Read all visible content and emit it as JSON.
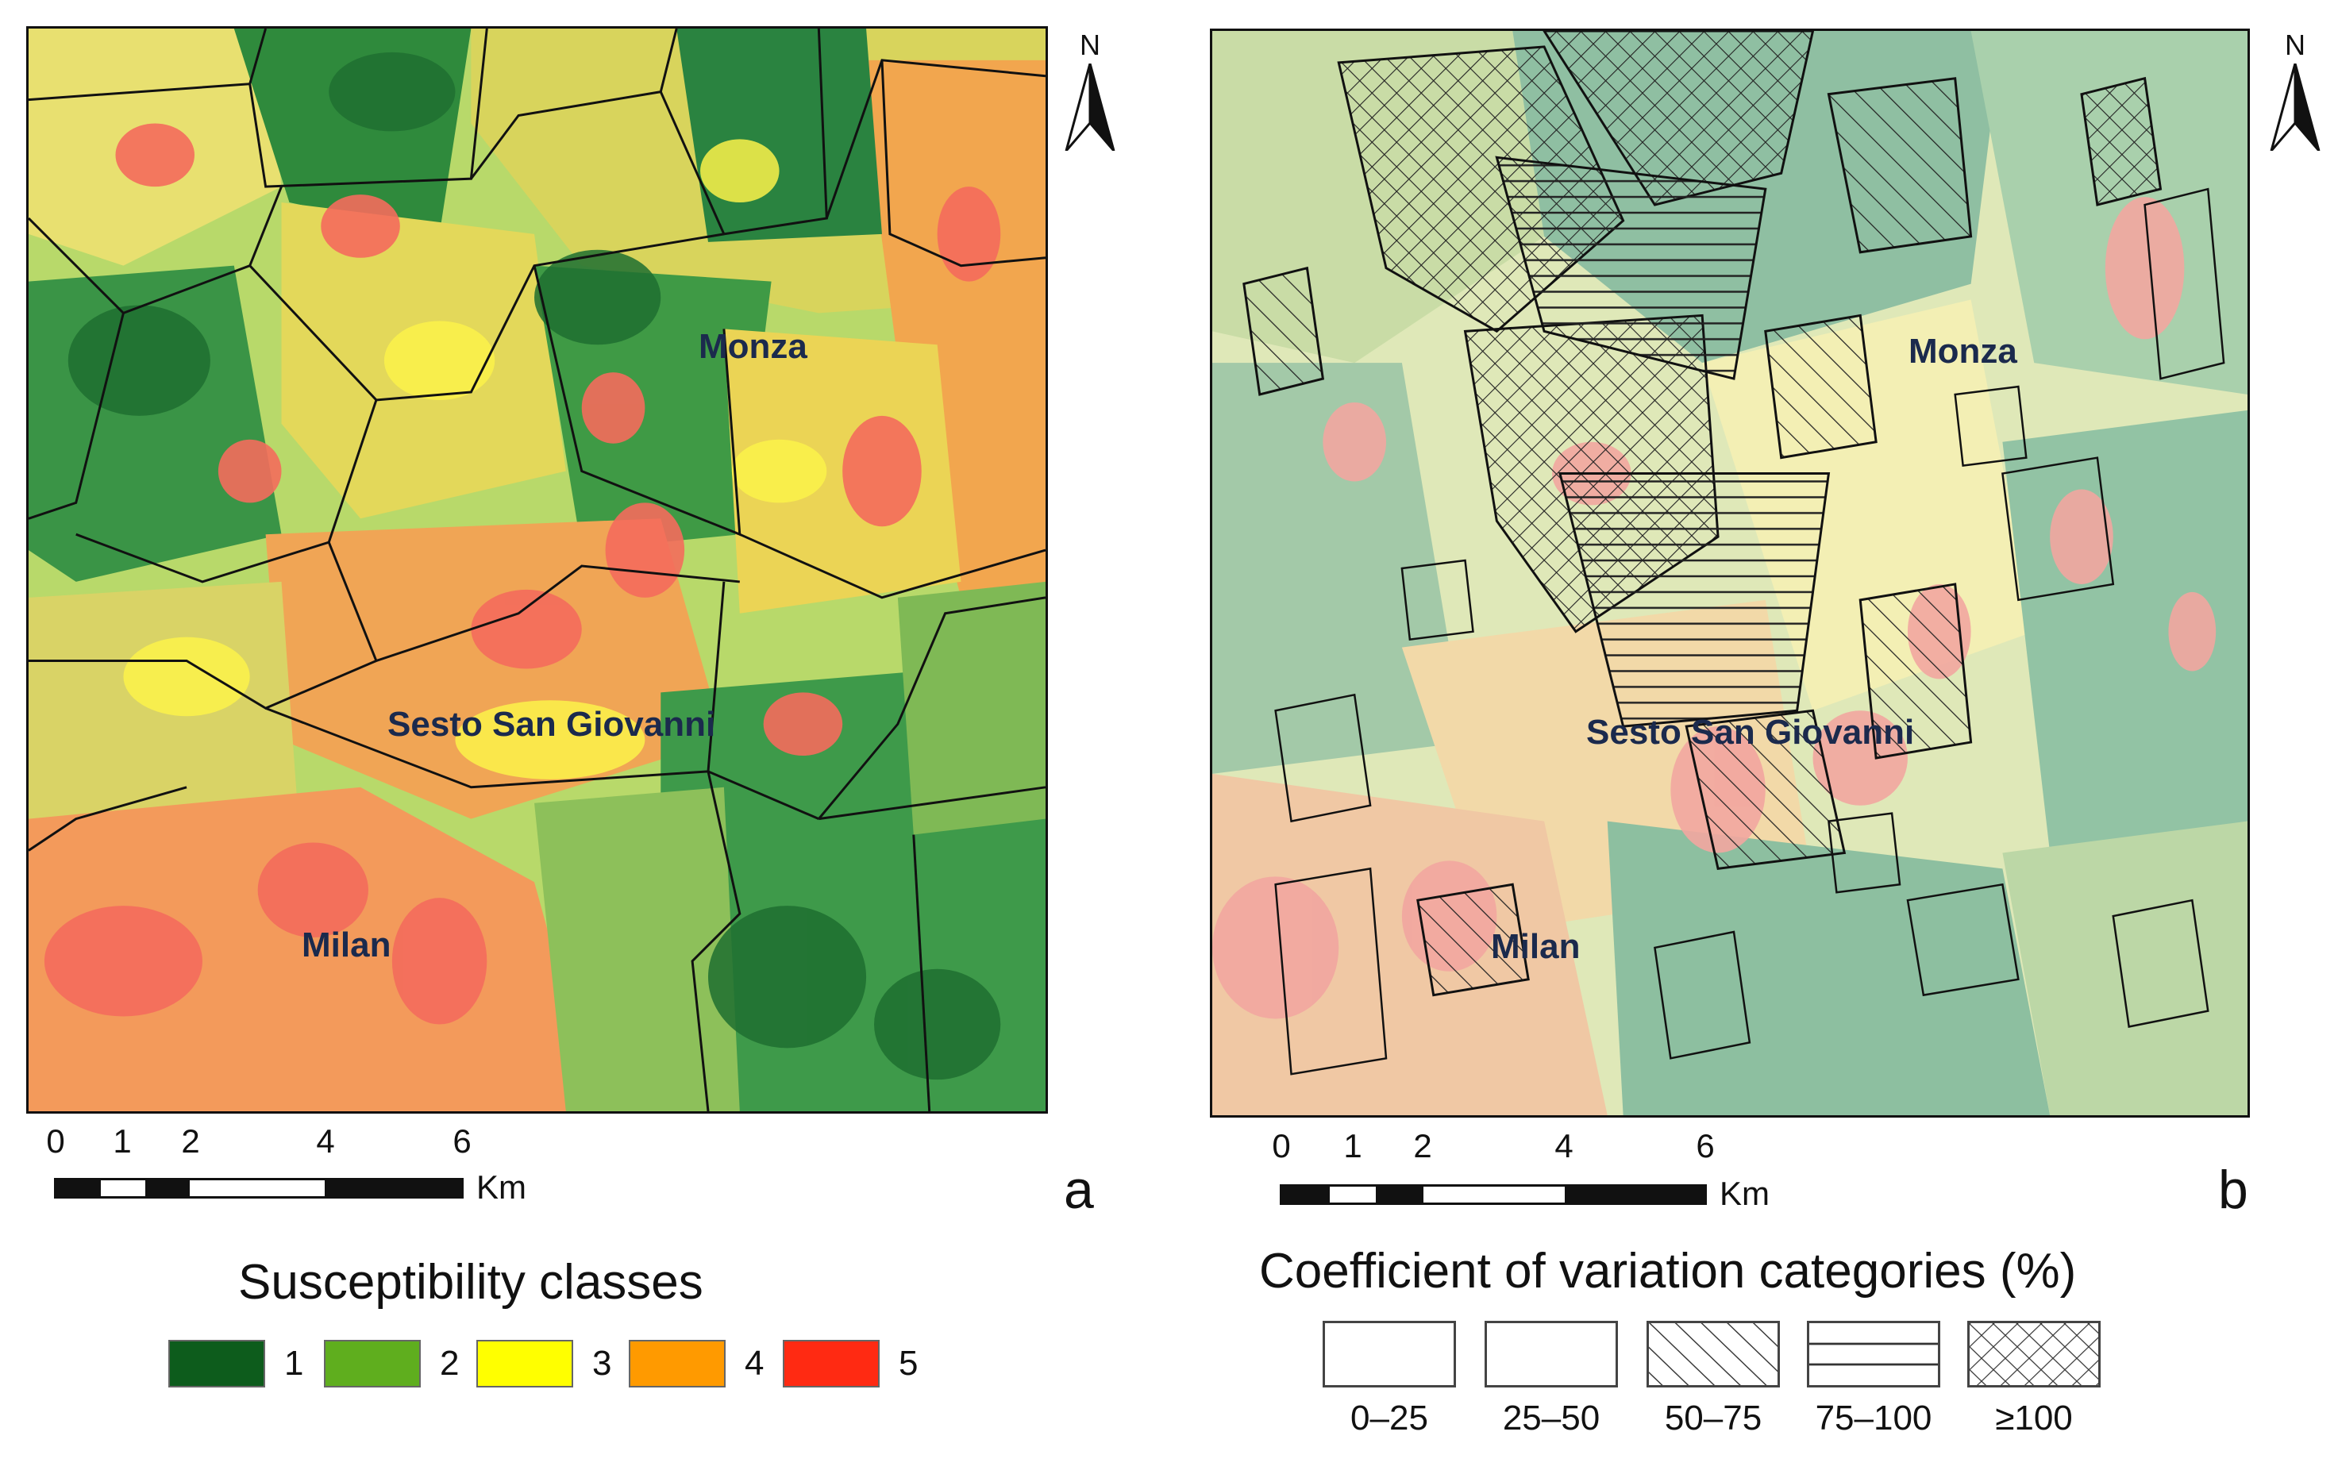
{
  "panel_a": {
    "letter": "a",
    "cities": [
      "Monza",
      "Sesto San Giovanni",
      "Milan"
    ],
    "north": "N",
    "scale_ticks": [
      "0",
      "1",
      "2",
      "4",
      "6"
    ],
    "scale_unit": "Km",
    "legend_title": "Susceptibility classes",
    "legend": [
      {
        "label": "1",
        "color": "#0d5c1c"
      },
      {
        "label": "2",
        "color": "#5fae1e"
      },
      {
        "label": "3",
        "color": "#ffff00"
      },
      {
        "label": "4",
        "color": "#ff9a00"
      },
      {
        "label": "5",
        "color": "#ff2a12"
      }
    ]
  },
  "panel_b": {
    "letter": "b",
    "cities": [
      "Monza",
      "Sesto San Giovanni",
      "Milan"
    ],
    "north": "N",
    "scale_ticks": [
      "0",
      "1",
      "2",
      "4",
      "6"
    ],
    "scale_unit": "Km",
    "legend_title": "Coefficient of variation categories (%)",
    "legend": [
      {
        "label": "0–25",
        "pattern": "none"
      },
      {
        "label": "25–50",
        "pattern": "none"
      },
      {
        "label": "50–75",
        "pattern": "diagonal"
      },
      {
        "label": "75–100",
        "pattern": "horizontal"
      },
      {
        "label": "≥100",
        "pattern": "crosshatch"
      }
    ]
  }
}
